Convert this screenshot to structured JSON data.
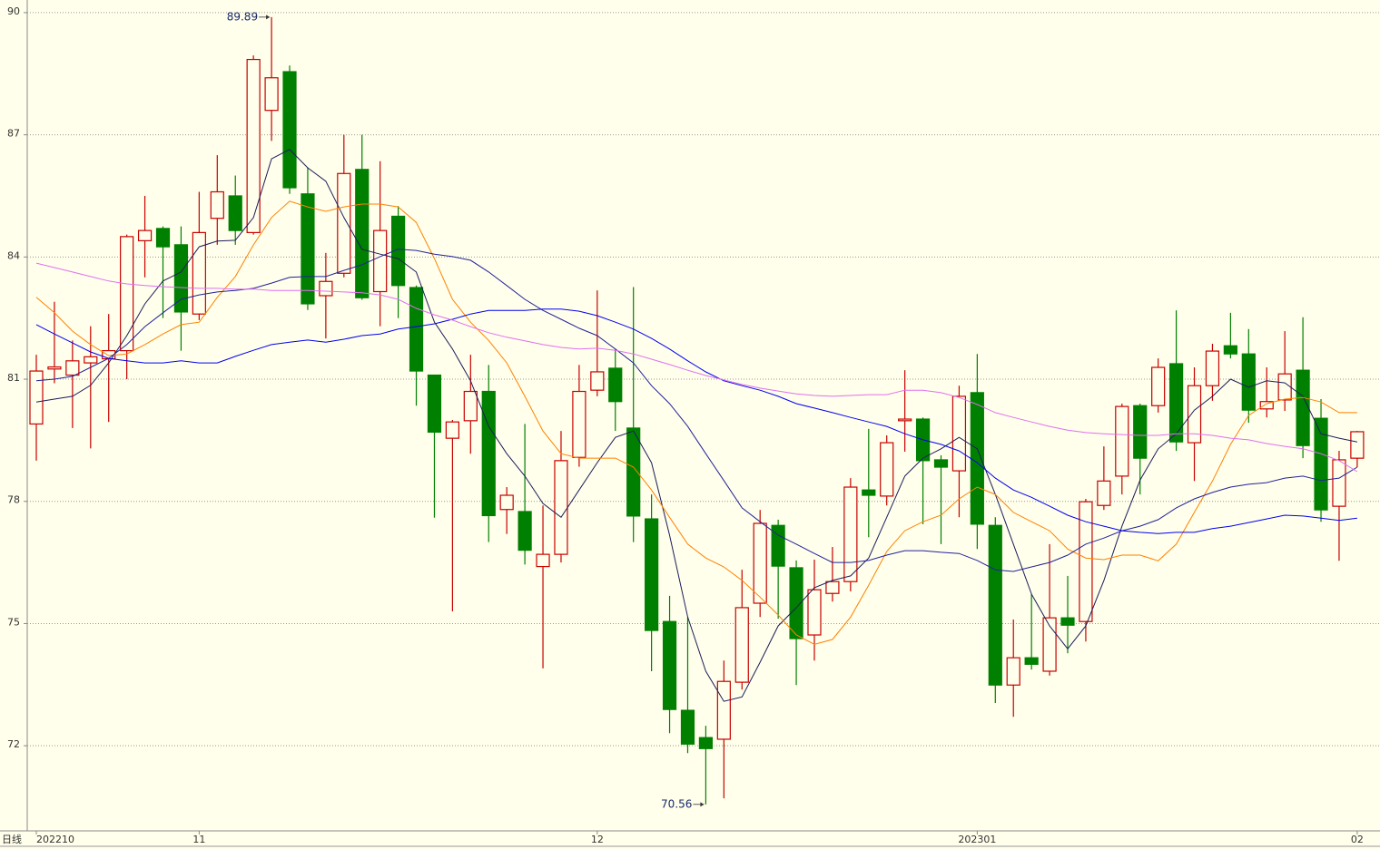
{
  "chart_data": {
    "type": "candlestick",
    "period": "日线",
    "categories": [
      "202210",
      null,
      null,
      null,
      null,
      null,
      null,
      null,
      null,
      "11",
      null,
      null,
      null,
      null,
      null,
      null,
      null,
      null,
      null,
      null,
      null,
      null,
      null,
      null,
      null,
      null,
      null,
      null,
      null,
      null,
      null,
      "12",
      null,
      null,
      null,
      null,
      null,
      null,
      null,
      null,
      null,
      null,
      null,
      null,
      null,
      null,
      null,
      null,
      null,
      null,
      null,
      null,
      "202301",
      null,
      null,
      null,
      null,
      null,
      null,
      null,
      null,
      null,
      null,
      null,
      null,
      null,
      null,
      null,
      null,
      null,
      null,
      null,
      null,
      "02"
    ],
    "open": [
      79.9,
      81.25,
      81.1,
      81.4,
      81.5,
      81.7,
      84.4,
      84.7,
      84.3,
      82.6,
      84.95,
      85.5,
      84.6,
      87.6,
      88.55,
      85.55,
      83.05,
      83.6,
      86.15,
      83.15,
      85.0,
      83.25,
      81.1,
      79.55,
      79.98,
      80.7,
      77.8,
      77.75,
      76.4,
      76.7,
      79.08,
      80.73,
      81.27,
      79.8,
      77.57,
      75.05,
      72.87,
      72.2,
      72.16,
      73.56,
      75.5,
      77.41,
      76.37,
      74.72,
      75.74,
      76.03,
      78.28,
      78.13,
      79.98,
      80.02,
      79.02,
      78.75,
      80.67,
      77.41,
      73.49,
      74.16,
      73.83,
      75.14,
      75.05,
      77.9,
      78.62,
      80.35,
      80.35,
      81.38,
      79.44,
      80.84,
      81.82,
      81.62,
      80.27,
      80.49,
      81.22,
      80.04,
      77.88,
      79.06
    ],
    "high": [
      81.6,
      82.9,
      81.95,
      82.3,
      82.6,
      84.55,
      85.5,
      84.75,
      84.75,
      85.6,
      86.5,
      86.0,
      88.95,
      89.89,
      88.7,
      86.2,
      84.1,
      87.0,
      87.0,
      86.35,
      85.25,
      83.3,
      81.1,
      80.0,
      81.6,
      81.35,
      78.35,
      79.9,
      77.9,
      79.73,
      81.35,
      83.18,
      81.73,
      83.26,
      78.17,
      75.68,
      75.16,
      72.49,
      74.09,
      76.32,
      77.79,
      77.55,
      76.55,
      76.57,
      76.88,
      78.57,
      79.78,
      79.62,
      81.22,
      80.06,
      79.13,
      80.84,
      81.62,
      77.61,
      75.1,
      75.72,
      76.95,
      76.17,
      78.06,
      79.35,
      80.4,
      80.4,
      81.51,
      82.69,
      81.29,
      81.87,
      82.63,
      82.23,
      81.29,
      82.18,
      82.52,
      80.51,
      79.24,
      79.73
    ],
    "low": [
      79.0,
      80.9,
      79.8,
      79.3,
      79.95,
      81.0,
      83.5,
      82.5,
      81.7,
      82.45,
      84.3,
      84.3,
      84.55,
      86.85,
      85.55,
      82.7,
      82.0,
      83.5,
      82.95,
      82.3,
      82.5,
      80.35,
      77.6,
      75.3,
      79.17,
      77.0,
      77.2,
      76.45,
      73.9,
      76.5,
      78.85,
      80.58,
      79.73,
      77.0,
      73.83,
      72.31,
      71.82,
      70.56,
      70.71,
      73.38,
      75.16,
      75.12,
      73.49,
      74.09,
      75.54,
      75.79,
      77.12,
      77.9,
      79.22,
      77.44,
      76.95,
      77.61,
      76.83,
      73.05,
      72.71,
      73.87,
      73.72,
      74.27,
      74.56,
      77.79,
      78.17,
      78.17,
      80.18,
      79.24,
      78.5,
      80.47,
      81.51,
      79.93,
      80.06,
      80.22,
      79.06,
      77.5,
      76.54,
      78.84
    ],
    "close": [
      81.2,
      81.3,
      81.45,
      81.55,
      81.7,
      84.5,
      84.65,
      84.25,
      82.65,
      84.6,
      85.6,
      84.65,
      88.85,
      88.4,
      85.7,
      82.85,
      83.4,
      86.05,
      83.0,
      84.65,
      83.3,
      81.2,
      79.7,
      79.95,
      80.7,
      77.65,
      78.15,
      76.8,
      76.7,
      79.0,
      80.7,
      81.18,
      80.45,
      77.64,
      74.83,
      72.89,
      72.04,
      71.93,
      73.58,
      75.39,
      77.46,
      76.41,
      74.63,
      75.83,
      76.03,
      78.35,
      78.15,
      79.44,
      80.02,
      79.0,
      78.84,
      80.58,
      77.44,
      73.49,
      74.16,
      74.0,
      75.14,
      74.96,
      77.99,
      78.5,
      80.33,
      79.06,
      81.29,
      79.46,
      80.84,
      81.69,
      81.62,
      80.24,
      80.45,
      81.13,
      79.37,
      77.79,
      79.02,
      79.71
    ],
    "up_color": "#c80000",
    "down_color": "#008000",
    "background": "#ffffeb",
    "series": [
      {
        "color": "#1c1c5c",
        "values": [
          80.44,
          80.51,
          80.58,
          80.85,
          81.4,
          82.07,
          82.85,
          83.41,
          83.63,
          84.25,
          84.39,
          84.41,
          84.97,
          86.41,
          86.64,
          86.19,
          85.86,
          84.97,
          84.19,
          84.07,
          83.96,
          83.63,
          82.4,
          81.74,
          80.96,
          79.84,
          79.17,
          78.62,
          77.95,
          77.61,
          78.28,
          78.95,
          79.57,
          79.73,
          78.95,
          77.17,
          75.16,
          73.83,
          73.09,
          73.2,
          74.05,
          74.94,
          75.39,
          75.88,
          76.06,
          76.17,
          76.61,
          77.61,
          78.62,
          79.06,
          79.29,
          79.57,
          79.29,
          78.17,
          76.95,
          75.72,
          74.94,
          74.38,
          74.94,
          76.06,
          77.39,
          78.52,
          79.29,
          79.66,
          80.24,
          80.58,
          81.0,
          80.8,
          80.96,
          80.91,
          80.58,
          79.66,
          79.55,
          79.46
        ]
      },
      {
        "color": "#ff8000",
        "values": [
          83.01,
          82.63,
          82.18,
          81.85,
          81.58,
          81.62,
          81.85,
          82.11,
          82.34,
          82.4,
          83.01,
          83.52,
          84.3,
          84.97,
          85.37,
          85.23,
          85.12,
          85.23,
          85.3,
          85.3,
          85.23,
          84.85,
          83.96,
          82.96,
          82.4,
          81.95,
          81.4,
          80.58,
          79.73,
          79.17,
          79.06,
          79.06,
          79.06,
          78.84,
          78.28,
          77.61,
          76.95,
          76.61,
          76.39,
          76.06,
          75.65,
          75.21,
          74.72,
          74.49,
          74.61,
          75.16,
          75.94,
          76.77,
          77.28,
          77.5,
          77.66,
          78.06,
          78.35,
          78.17,
          77.73,
          77.5,
          77.28,
          76.83,
          76.61,
          76.57,
          76.68,
          76.68,
          76.54,
          76.95,
          77.73,
          78.5,
          79.4,
          80.11,
          80.4,
          80.51,
          80.55,
          80.44,
          80.18,
          80.18
        ]
      },
      {
        "color": "#22229a",
        "values": [
          80.96,
          81.0,
          81.07,
          81.29,
          81.51,
          81.85,
          82.29,
          82.63,
          82.96,
          83.07,
          83.14,
          83.18,
          83.23,
          83.36,
          83.5,
          83.52,
          83.52,
          83.67,
          83.81,
          84.01,
          84.19,
          84.16,
          84.07,
          84.01,
          83.92,
          83.63,
          83.3,
          82.96,
          82.69,
          82.47,
          82.25,
          82.07,
          81.74,
          81.4,
          80.84,
          80.4,
          79.84,
          79.17,
          78.51,
          77.84,
          77.5,
          77.17,
          76.95,
          76.72,
          76.5,
          76.5,
          76.55,
          76.68,
          76.79,
          76.79,
          76.75,
          76.72,
          76.55,
          76.32,
          76.28,
          76.39,
          76.5,
          76.68,
          76.95,
          77.1,
          77.28,
          77.39,
          77.55,
          77.84,
          78.06,
          78.22,
          78.35,
          78.42,
          78.46,
          78.57,
          78.62,
          78.51,
          78.57,
          78.84
        ]
      },
      {
        "color": "#0000ee",
        "values": [
          82.34,
          82.11,
          81.89,
          81.67,
          81.51,
          81.45,
          81.4,
          81.4,
          81.45,
          81.4,
          81.4,
          81.56,
          81.71,
          81.85,
          81.91,
          81.96,
          81.91,
          81.98,
          82.07,
          82.11,
          82.23,
          82.29,
          82.36,
          82.47,
          82.6,
          82.69,
          82.69,
          82.69,
          82.72,
          82.72,
          82.67,
          82.56,
          82.4,
          82.23,
          82.0,
          81.74,
          81.45,
          81.18,
          80.96,
          80.84,
          80.73,
          80.58,
          80.4,
          80.29,
          80.18,
          80.06,
          79.95,
          79.84,
          79.66,
          79.51,
          79.4,
          79.24,
          78.95,
          78.57,
          78.28,
          78.1,
          77.88,
          77.66,
          77.5,
          77.39,
          77.28,
          77.24,
          77.21,
          77.24,
          77.24,
          77.33,
          77.39,
          77.48,
          77.57,
          77.66,
          77.64,
          77.59,
          77.53,
          77.59
        ]
      },
      {
        "color": "#e070f0",
        "values": [
          83.85,
          83.74,
          83.63,
          83.52,
          83.41,
          83.34,
          83.3,
          83.27,
          83.25,
          83.23,
          83.23,
          83.21,
          83.21,
          83.18,
          83.18,
          83.18,
          83.16,
          83.14,
          83.12,
          83.07,
          82.96,
          82.74,
          82.58,
          82.45,
          82.29,
          82.14,
          82.03,
          81.94,
          81.85,
          81.78,
          81.74,
          81.76,
          81.71,
          81.62,
          81.49,
          81.36,
          81.22,
          81.09,
          80.98,
          80.87,
          80.78,
          80.71,
          80.64,
          80.6,
          80.58,
          80.6,
          80.62,
          80.62,
          80.73,
          80.73,
          80.67,
          80.55,
          80.38,
          80.18,
          80.06,
          79.95,
          79.84,
          79.75,
          79.69,
          79.66,
          79.64,
          79.62,
          79.62,
          79.66,
          79.66,
          79.62,
          79.55,
          79.51,
          79.42,
          79.35,
          79.29,
          79.17,
          79.0,
          78.73
        ]
      }
    ],
    "ylim": [
      69.91,
      90.31
    ],
    "yticks": [
      72,
      75,
      78,
      81,
      84,
      87,
      90
    ],
    "grid": true
  }
}
